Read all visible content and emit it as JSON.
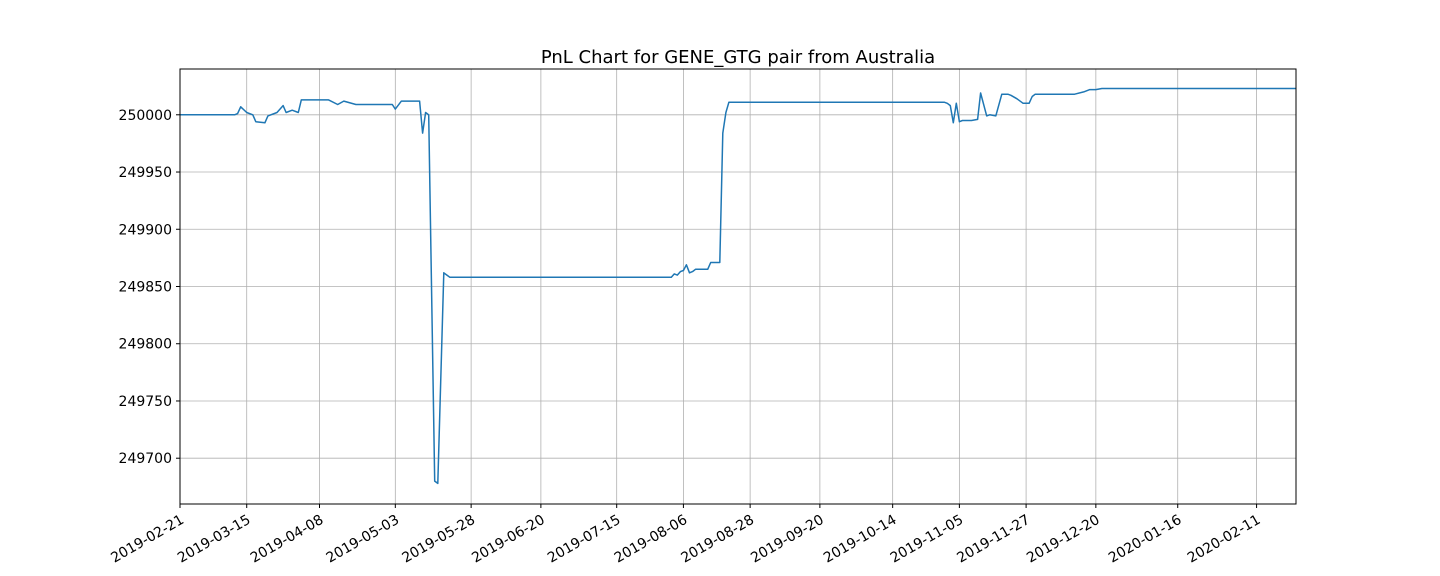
{
  "chart_data": {
    "type": "line",
    "title": "PnL Chart for GENE_GTG pair from Australia",
    "xlabel": "",
    "ylabel": "",
    "x_ticks": [
      "2019-02-21",
      "2019-03-15",
      "2019-04-08",
      "2019-05-03",
      "2019-05-28",
      "2019-06-20",
      "2019-07-15",
      "2019-08-06",
      "2019-08-28",
      "2019-09-20",
      "2019-10-14",
      "2019-11-05",
      "2019-11-27",
      "2019-12-20",
      "2020-01-16",
      "2020-02-11"
    ],
    "y_ticks": [
      249700,
      249750,
      249800,
      249850,
      249900,
      249950,
      250000
    ],
    "xlim": [
      "2019-02-21",
      "2020-02-24"
    ],
    "ylim": [
      249660,
      250040
    ],
    "grid": true,
    "color": "#1f77b4",
    "series": [
      {
        "x": [
          "2019-02-21",
          "2019-03-11",
          "2019-03-12",
          "2019-03-13",
          "2019-03-15",
          "2019-03-17",
          "2019-03-18",
          "2019-03-21",
          "2019-03-22",
          "2019-03-25",
          "2019-03-27",
          "2019-03-28",
          "2019-03-30",
          "2019-04-01",
          "2019-04-02",
          "2019-04-08",
          "2019-04-09",
          "2019-04-11",
          "2019-04-14",
          "2019-04-16",
          "2019-04-20",
          "2019-04-30",
          "2019-05-01",
          "2019-05-02",
          "2019-05-03",
          "2019-05-05",
          "2019-05-11",
          "2019-05-12",
          "2019-05-13",
          "2019-05-14",
          "2019-05-16",
          "2019-05-17",
          "2019-05-18",
          "2019-05-19",
          "2019-05-20",
          "2019-05-21",
          "2019-05-22",
          "2019-05-23",
          "2019-05-24",
          "2019-05-25",
          "2019-05-27",
          "2019-08-02",
          "2019-08-03",
          "2019-08-04",
          "2019-08-05",
          "2019-08-06",
          "2019-08-07",
          "2019-08-08",
          "2019-08-09",
          "2019-08-10",
          "2019-08-11",
          "2019-08-14",
          "2019-08-15",
          "2019-08-18",
          "2019-08-19",
          "2019-08-20",
          "2019-08-21",
          "2019-08-22",
          "2019-08-26",
          "2019-10-31",
          "2019-11-01",
          "2019-11-02",
          "2019-11-03",
          "2019-11-04",
          "2019-11-05",
          "2019-11-06",
          "2019-11-07",
          "2019-11-09",
          "2019-11-11",
          "2019-11-12",
          "2019-11-14",
          "2019-11-15",
          "2019-11-17",
          "2019-11-19",
          "2019-11-21",
          "2019-11-22",
          "2019-11-24",
          "2019-11-26",
          "2019-11-28",
          "2019-11-29",
          "2019-11-30",
          "2019-12-01",
          "2019-12-02",
          "2019-12-13",
          "2019-12-16",
          "2019-12-18",
          "2019-12-20",
          "2019-12-22",
          "2020-02-24"
        ],
        "y": [
          250000,
          250000,
          250001,
          250007,
          250002,
          250000,
          249994,
          249993,
          249999,
          250002,
          250008,
          250002,
          250004,
          250002,
          250013,
          250013,
          250013,
          250013,
          250009,
          250012,
          250009,
          250009,
          250009,
          250009,
          250005,
          250012,
          250012,
          249984,
          250002,
          250000,
          249680,
          249678,
          249770,
          249862,
          249860,
          249858,
          249858,
          249858,
          249858,
          249858,
          249858,
          249858,
          249861,
          249860,
          249863,
          249864,
          249869,
          249862,
          249863,
          249865,
          249865,
          249865,
          249871,
          249871,
          249984,
          250002,
          250011,
          250011,
          250011,
          250011,
          250010,
          250008,
          249993,
          250010,
          249994,
          249995,
          249995,
          249995,
          249996,
          250019,
          249999,
          250000,
          249999,
          250018,
          250018,
          250017,
          250014,
          250010,
          250010,
          250016,
          250018,
          250018,
          250018,
          250018,
          250020,
          250022,
          250022,
          250023,
          250023
        ]
      }
    ]
  }
}
